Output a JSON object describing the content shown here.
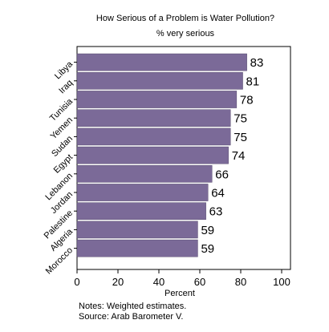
{
  "chart_data": {
    "type": "bar",
    "orientation": "horizontal",
    "title": "How Serious of a Problem is Water Pollution?",
    "subtitle": "% very serious",
    "xlabel": "Percent",
    "ylabel": "",
    "xlim": [
      0,
      100
    ],
    "xticks": [
      "0",
      "20",
      "40",
      "60",
      "80",
      "100"
    ],
    "categories": [
      "Libya",
      "Iraq",
      "Tunisia",
      "Yemen",
      "Sudan",
      "Egypt",
      "Lebanon",
      "Jordan",
      "Palestine",
      "Algeria",
      "Morocco"
    ],
    "values": [
      83,
      81,
      78,
      75,
      75,
      74,
      66,
      64,
      63,
      59,
      59
    ],
    "bar_color": "#7b6a98",
    "grid": false,
    "legend": "none"
  },
  "notes": [
    "Notes: Weighted estimates.",
    "Source: Arab Barometer V."
  ]
}
